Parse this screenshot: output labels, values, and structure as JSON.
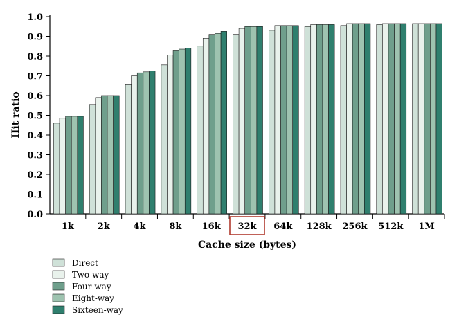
{
  "chart_data": {
    "type": "bar",
    "title": "",
    "xlabel": "Cache size (bytes)",
    "ylabel": "Hit ratio",
    "ylim": [
      0,
      1.0
    ],
    "yticks": [
      "0.0",
      "0.1",
      "0.2",
      "0.3",
      "0.4",
      "0.5",
      "0.6",
      "0.7",
      "0.8",
      "0.9",
      "1.0"
    ],
    "categories": [
      "1k",
      "2k",
      "4k",
      "8k",
      "16k",
      "32k",
      "64k",
      "128k",
      "256k",
      "512k",
      "1M"
    ],
    "highlighted_category": "32k",
    "highlight_color": "#b03a2e",
    "grid": false,
    "legend_position": "bottom-left",
    "series": [
      {
        "name": "Direct",
        "color": "#cfe1d8",
        "values": [
          0.46,
          0.555,
          0.655,
          0.755,
          0.85,
          0.91,
          0.93,
          0.95,
          0.955,
          0.96,
          0.965
        ]
      },
      {
        "name": "Two-way",
        "color": "#e9f2ec",
        "values": [
          0.485,
          0.59,
          0.7,
          0.805,
          0.89,
          0.94,
          0.955,
          0.96,
          0.965,
          0.965,
          0.965
        ]
      },
      {
        "name": "Four-way",
        "color": "#6f9f8c",
        "values": [
          0.495,
          0.6,
          0.715,
          0.83,
          0.91,
          0.95,
          0.955,
          0.96,
          0.965,
          0.965,
          0.965
        ]
      },
      {
        "name": "Eight-way",
        "color": "#9ec3b0",
        "values": [
          0.495,
          0.6,
          0.72,
          0.835,
          0.915,
          0.95,
          0.955,
          0.96,
          0.965,
          0.965,
          0.965
        ]
      },
      {
        "name": "Sixteen-way",
        "color": "#2f7f6e",
        "values": [
          0.495,
          0.6,
          0.725,
          0.84,
          0.925,
          0.95,
          0.955,
          0.96,
          0.965,
          0.965,
          0.965
        ]
      }
    ]
  }
}
